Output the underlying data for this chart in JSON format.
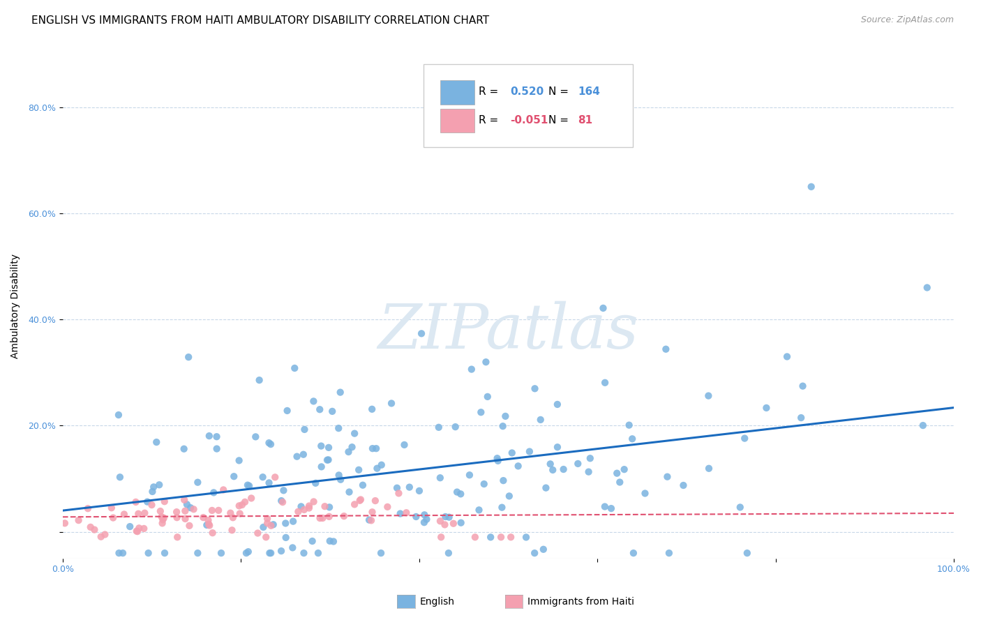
{
  "title": "ENGLISH VS IMMIGRANTS FROM HAITI AMBULATORY DISABILITY CORRELATION CHART",
  "source": "Source: ZipAtlas.com",
  "ylabel": "Ambulatory Disability",
  "ytick_values": [
    0.0,
    0.2,
    0.4,
    0.6,
    0.8
  ],
  "xlim": [
    0,
    1.0
  ],
  "ylim": [
    -0.05,
    0.9
  ],
  "english_R": 0.52,
  "english_N": 164,
  "haiti_R": -0.051,
  "haiti_N": 81,
  "english_color": "#7ab3e0",
  "haiti_color": "#f4a0b0",
  "english_line_color": "#1a6bbf",
  "haiti_line_color": "#e05070",
  "background_color": "#ffffff",
  "watermark_color": "#dce8f2",
  "legend_labels": [
    "English",
    "Immigrants from Haiti"
  ],
  "title_fontsize": 11,
  "axis_label_fontsize": 10,
  "tick_fontsize": 9,
  "legend_fontsize": 11
}
